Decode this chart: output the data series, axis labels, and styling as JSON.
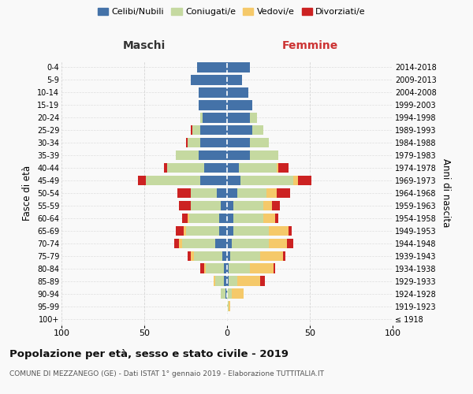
{
  "age_groups": [
    "100+",
    "95-99",
    "90-94",
    "85-89",
    "80-84",
    "75-79",
    "70-74",
    "65-69",
    "60-64",
    "55-59",
    "50-54",
    "45-49",
    "40-44",
    "35-39",
    "30-34",
    "25-29",
    "20-24",
    "15-19",
    "10-14",
    "5-9",
    "0-4"
  ],
  "birth_years": [
    "≤ 1918",
    "1919-1923",
    "1924-1928",
    "1929-1933",
    "1934-1938",
    "1939-1943",
    "1944-1948",
    "1949-1953",
    "1954-1958",
    "1959-1963",
    "1964-1968",
    "1969-1973",
    "1974-1978",
    "1979-1983",
    "1984-1988",
    "1989-1993",
    "1994-1998",
    "1999-2003",
    "2004-2008",
    "2009-2013",
    "2014-2018"
  ],
  "male": {
    "celibi": [
      0,
      0,
      1,
      2,
      2,
      3,
      7,
      5,
      5,
      4,
      6,
      16,
      14,
      17,
      16,
      16,
      15,
      17,
      17,
      22,
      18
    ],
    "coniugati": [
      0,
      0,
      3,
      5,
      11,
      17,
      20,
      20,
      18,
      18,
      16,
      33,
      22,
      14,
      8,
      5,
      1,
      0,
      0,
      0,
      0
    ],
    "vedovi": [
      0,
      0,
      0,
      1,
      1,
      2,
      2,
      1,
      1,
      0,
      0,
      0,
      0,
      0,
      0,
      0,
      0,
      0,
      0,
      0,
      0
    ],
    "divorziati": [
      0,
      0,
      0,
      0,
      2,
      2,
      3,
      5,
      3,
      7,
      8,
      5,
      2,
      0,
      1,
      1,
      0,
      0,
      0,
      0,
      0
    ]
  },
  "female": {
    "nubili": [
      0,
      0,
      0,
      1,
      1,
      2,
      3,
      4,
      4,
      4,
      6,
      8,
      7,
      14,
      14,
      15,
      14,
      15,
      13,
      9,
      14
    ],
    "coniugate": [
      0,
      1,
      3,
      5,
      13,
      18,
      22,
      21,
      18,
      18,
      18,
      32,
      23,
      17,
      11,
      7,
      4,
      0,
      0,
      0,
      0
    ],
    "vedove": [
      0,
      1,
      7,
      14,
      14,
      14,
      11,
      12,
      7,
      5,
      6,
      3,
      1,
      0,
      0,
      0,
      0,
      0,
      0,
      0,
      0
    ],
    "divorziate": [
      0,
      0,
      0,
      3,
      1,
      1,
      4,
      2,
      2,
      5,
      8,
      8,
      6,
      0,
      0,
      0,
      0,
      0,
      0,
      0,
      0
    ]
  },
  "colors": {
    "celibi": "#4472a8",
    "coniugati": "#c5d9a0",
    "vedovi": "#f5c96a",
    "divorziati": "#cc2222"
  },
  "title": "Popolazione per età, sesso e stato civile - 2019",
  "subtitle": "COMUNE DI MEZZANEGO (GE) - Dati ISTAT 1° gennaio 2019 - Elaborazione TUTTITALIA.IT",
  "xlim": 100,
  "ylabel_left": "Fasce di età",
  "ylabel_right": "Anni di nascita",
  "xlabel_left": "Maschi",
  "xlabel_right": "Femmine",
  "background_color": "#f9f9f9",
  "grid_color": "#cccccc",
  "legend_labels": [
    "Celibi/Nubili",
    "Coniugati/e",
    "Vedovi/e",
    "Divorziati/e"
  ]
}
